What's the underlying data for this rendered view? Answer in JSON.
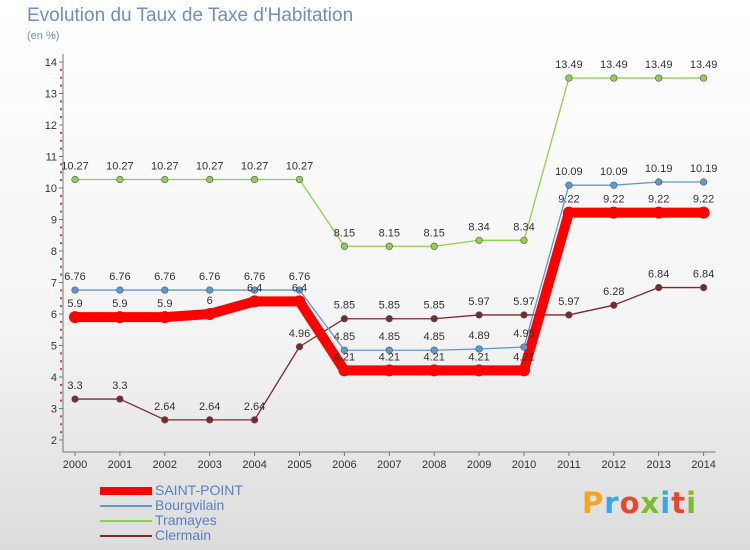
{
  "header": {
    "title": "Evolution du Taux de Taxe d'Habitation",
    "unit": "(en %)"
  },
  "logo": {
    "text": "Proxiti",
    "colors": [
      "#f7a51c",
      "#3aa7e0",
      "#e8462e",
      "#7dbb2f",
      "#3aa7e0",
      "#e8462e",
      "#7dbb2f"
    ]
  },
  "chart_data": {
    "type": "line",
    "title": "Evolution du Taux de Taxe d'Habitation",
    "ylabel": "(en %)",
    "xlabel": "",
    "ylim": [
      2,
      14
    ],
    "yticks": [
      2,
      3,
      4,
      5,
      6,
      7,
      8,
      9,
      10,
      11,
      12,
      13,
      14
    ],
    "grid": false,
    "legend": "bottom-left",
    "x": [
      "2000",
      "2001",
      "2002",
      "2003",
      "2004",
      "2005",
      "2006",
      "2007",
      "2008",
      "2009",
      "2010",
      "2011",
      "2012",
      "2013",
      "2014"
    ],
    "series": [
      {
        "name": "SAINT-POINT",
        "color": "#ff0000",
        "values": [
          5.9,
          5.9,
          5.9,
          6,
          6.4,
          6.4,
          4.21,
          4.21,
          4.21,
          4.21,
          4.21,
          9.22,
          9.22,
          9.22,
          9.22
        ],
        "labels": [
          "5.9",
          "5.9",
          "5.9",
          "6",
          "6.4",
          "6.4",
          "4.21",
          "4.21",
          "4.21",
          "4.21",
          "4.21",
          "9.22",
          "9.22",
          "9.22",
          "9.22"
        ]
      },
      {
        "name": "Bourgvilain",
        "color": "#5b9bd5",
        "values": [
          6.76,
          6.76,
          6.76,
          6.76,
          6.76,
          6.76,
          4.85,
          4.85,
          4.85,
          4.89,
          4.95,
          10.09,
          10.09,
          10.19,
          10.19
        ],
        "labels": [
          "6.76",
          "6.76",
          "6.76",
          "6.76",
          "6.76",
          "6.76",
          "4.85",
          "4.85",
          "4.85",
          "4.89",
          "4.95",
          "10.09",
          "10.09",
          "10.19",
          "10.19"
        ]
      },
      {
        "name": "Tramayes",
        "color": "#8fd14f",
        "values": [
          10.27,
          10.27,
          10.27,
          10.27,
          10.27,
          10.27,
          8.15,
          8.15,
          8.15,
          8.34,
          8.34,
          13.49,
          13.49,
          13.49,
          13.49
        ],
        "labels": [
          "10.27",
          "10.27",
          "10.27",
          "10.27",
          "10.27",
          "10.27",
          "8.15",
          "8.15",
          "8.15",
          "8.34",
          "8.34",
          "13.49",
          "13.49",
          "13.49",
          "13.49"
        ]
      },
      {
        "name": "Clermain",
        "color": "#7a2a2a",
        "values": [
          3.3,
          3.3,
          2.64,
          2.64,
          2.64,
          4.96,
          5.85,
          5.85,
          5.85,
          5.97,
          5.97,
          5.97,
          6.28,
          6.84,
          6.84
        ],
        "labels": [
          "3.3",
          "3.3",
          "2.64",
          "2.64",
          "2.64",
          "4.96",
          "5.85",
          "5.85",
          "5.85",
          "5.97",
          "5.97",
          "5.97",
          "6.28",
          "6.84",
          "6.84"
        ]
      }
    ]
  }
}
